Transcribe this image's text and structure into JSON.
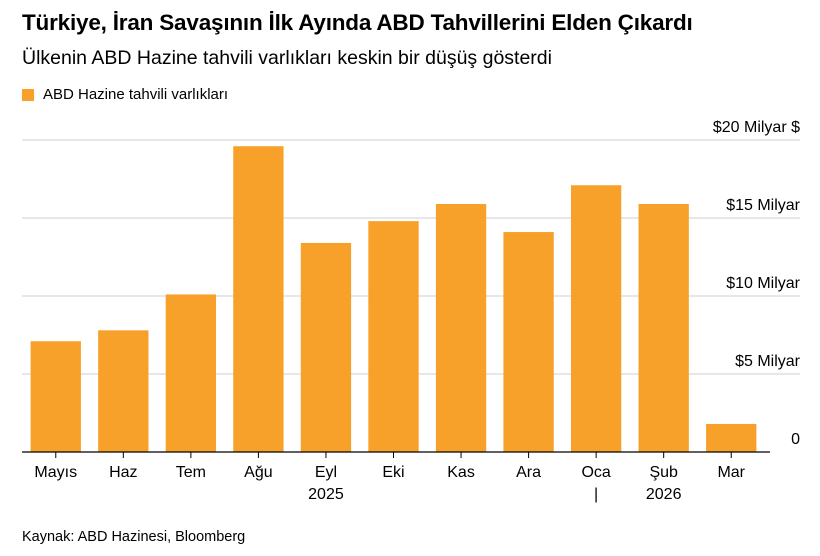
{
  "title": "Türkiye, İran Savaşının İlk Ayında ABD Tahvillerini Elden Çıkardı",
  "subtitle": "Ülkenin ABD Hazine tahvili varlıkları keskin bir düşüş gösterdi",
  "source": "Kaynak: ABD Hazinesi, Bloomberg",
  "colors": {
    "bar": "#f8a12a",
    "grid": "#cfcfcf",
    "axis": "#000000",
    "text": "#000000"
  },
  "chart_data": {
    "type": "bar",
    "categories": [
      "Mayıs",
      "Haz",
      "Tem",
      "Ağu",
      "Eyl",
      "Eki",
      "Kas",
      "Ara",
      "Oca",
      "Şub",
      "Mar"
    ],
    "category_sublabels": [
      "",
      "",
      "",
      "",
      "2025",
      "",
      "",
      "",
      "|",
      "2026",
      ""
    ],
    "series": [
      {
        "name": "ABD Hazine tahvili varlıkları",
        "values": [
          7.1,
          7.8,
          10.1,
          19.6,
          13.4,
          14.8,
          15.9,
          14.1,
          17.1,
          15.9,
          1.8
        ]
      }
    ],
    "y_ticks": [
      {
        "value": 0,
        "label": "0"
      },
      {
        "value": 5,
        "label": "$5 Milyar"
      },
      {
        "value": 10,
        "label": "$10 Milyar"
      },
      {
        "value": 15,
        "label": "$15 Milyar"
      },
      {
        "value": 20,
        "label": "$20 Milyar $"
      }
    ],
    "ylim": [
      0,
      20
    ],
    "grid": true,
    "legend_position": "top-left",
    "y_axis_side": "right"
  }
}
